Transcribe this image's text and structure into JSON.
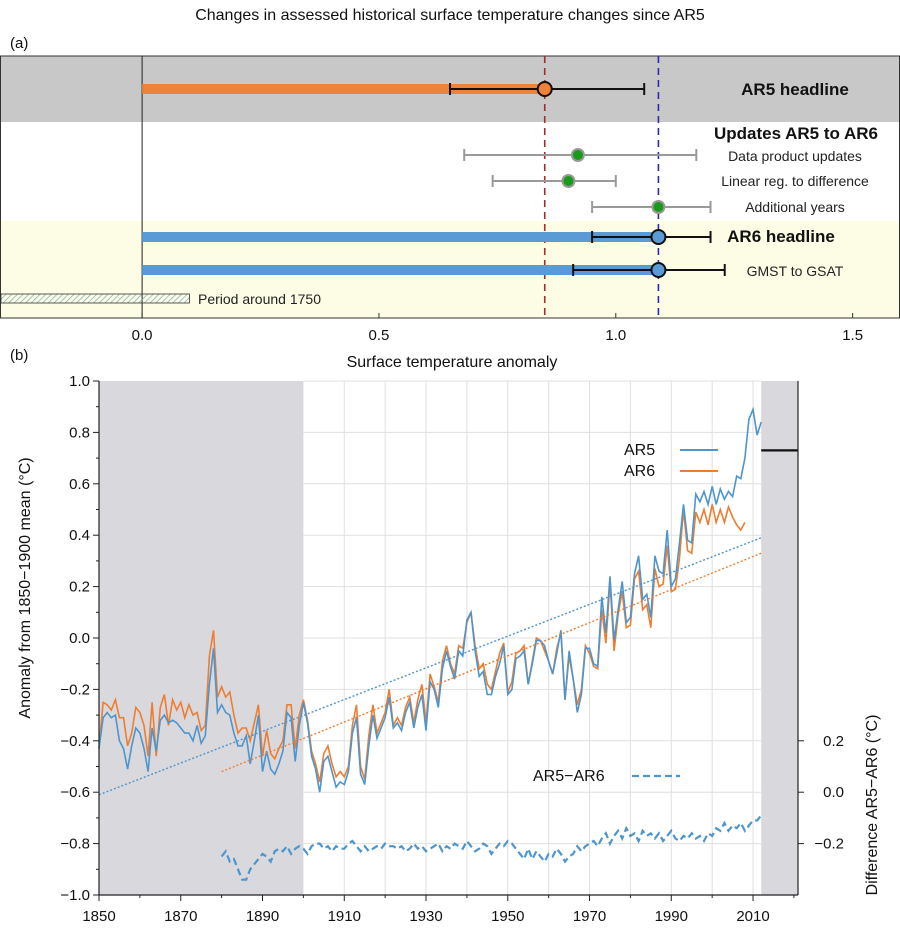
{
  "figure": {
    "title": "Changes in assessed historical surface temperature changes since AR5",
    "panel_a_label": "(a)",
    "panel_b_label": "(b)"
  },
  "colors": {
    "ar5": "#ee8236",
    "ar6": "#5b9bd5",
    "ar5_line": "#4d95cc",
    "ar6_line": "#ed7d31",
    "shade_grey": "#c8c8c8",
    "shade_yellow": "#fdfde6",
    "early_grey": "#d9d9dd",
    "ar5_ref_line": "#a52a2a",
    "ar6_ref_line": "#2b2bb0",
    "update_point": "#1a9a1a",
    "update_bar": "#999999"
  },
  "chart_data": [
    {
      "type": "bar",
      "panel": "a",
      "orientation": "horizontal",
      "xlabel": "Surface temperature anomaly",
      "xlim": [
        -0.3,
        1.6
      ],
      "xticks": [
        "0.0",
        "0.5",
        "1.0",
        "1.5"
      ],
      "xtick_values": [
        0,
        0.5,
        1.0,
        1.5
      ],
      "ar5_reference": 0.85,
      "ar6_reference": 1.09,
      "sections": {
        "ar5": "AR5 headline",
        "updates": "Updates AR5 to AR6",
        "ar6": "AR6 headline",
        "gsat": "GMST to GSAT",
        "period": "Period around 1750"
      },
      "rows": [
        {
          "label": "AR5 headline",
          "value": 0.85,
          "low": 0.65,
          "high": 1.06,
          "kind": "bar",
          "series": "ar5"
        },
        {
          "label": "Data product updates",
          "value": 0.92,
          "low": 0.68,
          "high": 1.17,
          "kind": "point"
        },
        {
          "label": "Linear reg. to difference",
          "value": 0.9,
          "low": 0.74,
          "high": 1.0,
          "kind": "point"
        },
        {
          "label": "Additional years",
          "value": 1.09,
          "low": 0.95,
          "high": 1.2,
          "kind": "point"
        },
        {
          "label": "AR6 headline",
          "value": 1.09,
          "low": 0.95,
          "high": 1.2,
          "kind": "bar",
          "series": "ar6"
        },
        {
          "label": "GMST to GSAT",
          "value": 1.09,
          "low": 0.91,
          "high": 1.23,
          "kind": "bar",
          "series": "ar6"
        }
      ],
      "period_range": [
        -0.3,
        0.1
      ]
    },
    {
      "type": "line",
      "panel": "b",
      "ylabel": "Anomaly from 1850−1900 mean (°C)",
      "y2label": "Difference AR5−AR6 (°C)",
      "xlim": [
        1850,
        2021
      ],
      "ylim": [
        -1.0,
        1.0
      ],
      "y2lim": [
        -0.4,
        1.6
      ],
      "xticks": [
        "1850",
        "1870",
        "1890",
        "1910",
        "1930",
        "1950",
        "1970",
        "1990",
        "2010"
      ],
      "xtick_values": [
        1850,
        1870,
        1890,
        1910,
        1930,
        1950,
        1970,
        1990,
        2010
      ],
      "yticks": [
        "1.0",
        "0.8",
        "0.6",
        "0.4",
        "0.2",
        "0.0",
        "−0.2",
        "−0.4",
        "−0.6",
        "−0.8",
        "−1.0"
      ],
      "ytick_values": [
        1.0,
        0.8,
        0.6,
        0.4,
        0.2,
        0.0,
        -0.2,
        -0.4,
        -0.6,
        -0.8,
        -1.0
      ],
      "y2ticks": [
        "0.2",
        "0.0",
        "−0.2"
      ],
      "y2tick_values": [
        0.2,
        0.0,
        -0.2
      ],
      "grid": true,
      "legend_position": "top-right",
      "legend": [
        "AR5",
        "AR6"
      ],
      "diff_label": "AR5−AR6",
      "shaded_periods": [
        [
          1850,
          1900
        ],
        [
          2012,
          2021
        ]
      ],
      "headline_level": {
        "x": [
          2012,
          2021
        ],
        "y": 0.73
      },
      "series": [
        {
          "name": "AR5",
          "x_start": 1850,
          "values": [
            -0.43,
            -0.31,
            -0.29,
            -0.31,
            -0.3,
            -0.4,
            -0.43,
            -0.51,
            -0.42,
            -0.35,
            -0.37,
            -0.43,
            -0.52,
            -0.35,
            -0.44,
            -0.32,
            -0.3,
            -0.33,
            -0.32,
            -0.33,
            -0.35,
            -0.37,
            -0.37,
            -0.4,
            -0.34,
            -0.41,
            -0.38,
            -0.18,
            -0.04,
            -0.29,
            -0.26,
            -0.29,
            -0.3,
            -0.37,
            -0.42,
            -0.42,
            -0.38,
            -0.49,
            -0.4,
            -0.3,
            -0.52,
            -0.44,
            -0.51,
            -0.53,
            -0.49,
            -0.44,
            -0.29,
            -0.31,
            -0.48,
            -0.34,
            -0.25,
            -0.33,
            -0.46,
            -0.51,
            -0.6,
            -0.48,
            -0.46,
            -0.52,
            -0.58,
            -0.56,
            -0.57,
            -0.52,
            -0.37,
            -0.31,
            -0.53,
            -0.57,
            -0.42,
            -0.3,
            -0.39,
            -0.35,
            -0.31,
            -0.23,
            -0.35,
            -0.33,
            -0.36,
            -0.29,
            -0.25,
            -0.35,
            -0.27,
            -0.22,
            -0.36,
            -0.17,
            -0.2,
            -0.27,
            -0.12,
            -0.05,
            -0.11,
            -0.16,
            -0.05,
            -0.07,
            0.07,
            0.1,
            -0.05,
            -0.15,
            -0.13,
            -0.22,
            -0.22,
            -0.15,
            -0.1,
            -0.03,
            -0.22,
            -0.2,
            -0.08,
            -0.07,
            -0.05,
            -0.18,
            -0.1,
            -0.01,
            -0.01,
            -0.03,
            -0.09,
            -0.14,
            -0.06,
            0.03,
            -0.24,
            -0.05,
            -0.16,
            -0.29,
            -0.22,
            -0.04,
            -0.04,
            -0.1,
            -0.11,
            0.16,
            0.02,
            0.24,
            -0.01,
            0.11,
            0.22,
            0.06,
            0.08,
            0.25,
            0.32,
            0.15,
            0.17,
            0.08,
            0.32,
            0.26,
            0.25,
            0.42,
            0.2,
            0.23,
            0.37,
            0.52,
            0.38,
            0.37,
            0.56,
            0.53,
            0.57,
            0.52,
            0.59,
            0.52,
            0.58,
            0.54,
            0.57,
            0.55,
            0.63,
            0.62,
            0.7,
            0.85,
            0.89,
            0.79,
            0.84
          ]
        },
        {
          "name": "AR6",
          "x_start": 1850,
          "values": [
            -0.43,
            -0.25,
            -0.26,
            -0.28,
            -0.24,
            -0.31,
            -0.31,
            -0.42,
            -0.37,
            -0.27,
            -0.29,
            -0.34,
            -0.46,
            -0.25,
            -0.46,
            -0.27,
            -0.22,
            -0.34,
            -0.24,
            -0.28,
            -0.25,
            -0.31,
            -0.26,
            -0.3,
            -0.29,
            -0.36,
            -0.34,
            -0.07,
            0.03,
            -0.23,
            -0.19,
            -0.23,
            -0.21,
            -0.3,
            -0.37,
            -0.35,
            -0.35,
            -0.4,
            -0.33,
            -0.26,
            -0.46,
            -0.36,
            -0.45,
            -0.47,
            -0.43,
            -0.4,
            -0.26,
            -0.26,
            -0.43,
            -0.3,
            -0.24,
            -0.32,
            -0.44,
            -0.49,
            -0.56,
            -0.45,
            -0.42,
            -0.49,
            -0.54,
            -0.52,
            -0.54,
            -0.5,
            -0.34,
            -0.26,
            -0.5,
            -0.55,
            -0.38,
            -0.26,
            -0.37,
            -0.33,
            -0.29,
            -0.2,
            -0.34,
            -0.31,
            -0.34,
            -0.27,
            -0.23,
            -0.33,
            -0.24,
            -0.18,
            -0.33,
            -0.14,
            -0.19,
            -0.25,
            -0.09,
            -0.03,
            -0.1,
            -0.14,
            -0.03,
            -0.04,
            0.06,
            0.1,
            -0.03,
            -0.12,
            -0.1,
            -0.18,
            -0.2,
            -0.13,
            -0.06,
            -0.02,
            -0.21,
            -0.17,
            -0.06,
            -0.05,
            -0.03,
            -0.18,
            -0.09,
            0.0,
            -0.01,
            -0.05,
            -0.09,
            -0.14,
            -0.04,
            0.02,
            -0.24,
            -0.07,
            -0.16,
            -0.26,
            -0.2,
            -0.03,
            -0.06,
            -0.11,
            -0.12,
            0.11,
            -0.02,
            0.22,
            -0.05,
            0.09,
            0.18,
            0.04,
            0.05,
            0.23,
            0.26,
            0.11,
            0.13,
            0.04,
            0.27,
            0.2,
            0.21,
            0.36,
            0.18,
            0.19,
            0.31,
            0.5,
            0.34,
            0.33,
            0.49,
            0.45,
            0.5,
            0.44,
            0.52,
            0.45,
            0.5,
            0.45,
            0.51,
            0.47,
            0.44,
            0.42,
            0.45
          ]
        },
        {
          "name": "AR5−AR6",
          "x_start": 1880,
          "values": [
            -0.25,
            -0.23,
            -0.27,
            -0.26,
            -0.3,
            -0.34,
            -0.34,
            -0.3,
            -0.28,
            -0.26,
            -0.24,
            -0.25,
            -0.27,
            -0.23,
            -0.22,
            -0.23,
            -0.21,
            -0.24,
            -0.22,
            -0.21,
            -0.22,
            -0.24,
            -0.21,
            -0.2,
            -0.2,
            -0.22,
            -0.21,
            -0.23,
            -0.21,
            -0.22,
            -0.22,
            -0.2,
            -0.19,
            -0.21,
            -0.23,
            -0.21,
            -0.23,
            -0.22,
            -0.21,
            -0.22,
            -0.2,
            -0.21,
            -0.21,
            -0.22,
            -0.21,
            -0.23,
            -0.22,
            -0.2,
            -0.22,
            -0.21,
            -0.23,
            -0.22,
            -0.21,
            -0.2,
            -0.23,
            -0.21,
            -0.22,
            -0.2,
            -0.21,
            -0.22,
            -0.19,
            -0.21,
            -0.23,
            -0.22,
            -0.2,
            -0.21,
            -0.24,
            -0.22,
            -0.2,
            -0.21,
            -0.19,
            -0.2,
            -0.22,
            -0.24,
            -0.26,
            -0.22,
            -0.26,
            -0.23,
            -0.25,
            -0.27,
            -0.24,
            -0.25,
            -0.22,
            -0.24,
            -0.27,
            -0.25,
            -0.24,
            -0.21,
            -0.23,
            -0.21,
            -0.2,
            -0.19,
            -0.21,
            -0.18,
            -0.16,
            -0.2,
            -0.17,
            -0.15,
            -0.18,
            -0.14,
            -0.17,
            -0.16,
            -0.19,
            -0.15,
            -0.17,
            -0.16,
            -0.18,
            -0.16,
            -0.19,
            -0.17,
            -0.15,
            -0.18,
            -0.19,
            -0.17,
            -0.18,
            -0.16,
            -0.18,
            -0.17,
            -0.19,
            -0.16,
            -0.17,
            -0.14,
            -0.15,
            -0.12,
            -0.15,
            -0.13,
            -0.14,
            -0.12,
            -0.15,
            -0.13,
            -0.11,
            -0.11,
            -0.09
          ]
        }
      ],
      "trends": [
        {
          "name": "AR5",
          "x": [
            1850,
            2012
          ],
          "y": [
            -0.61,
            0.39
          ]
        },
        {
          "name": "AR6",
          "x": [
            1880,
            2012
          ],
          "y": [
            -0.52,
            0.33
          ]
        }
      ]
    }
  ]
}
